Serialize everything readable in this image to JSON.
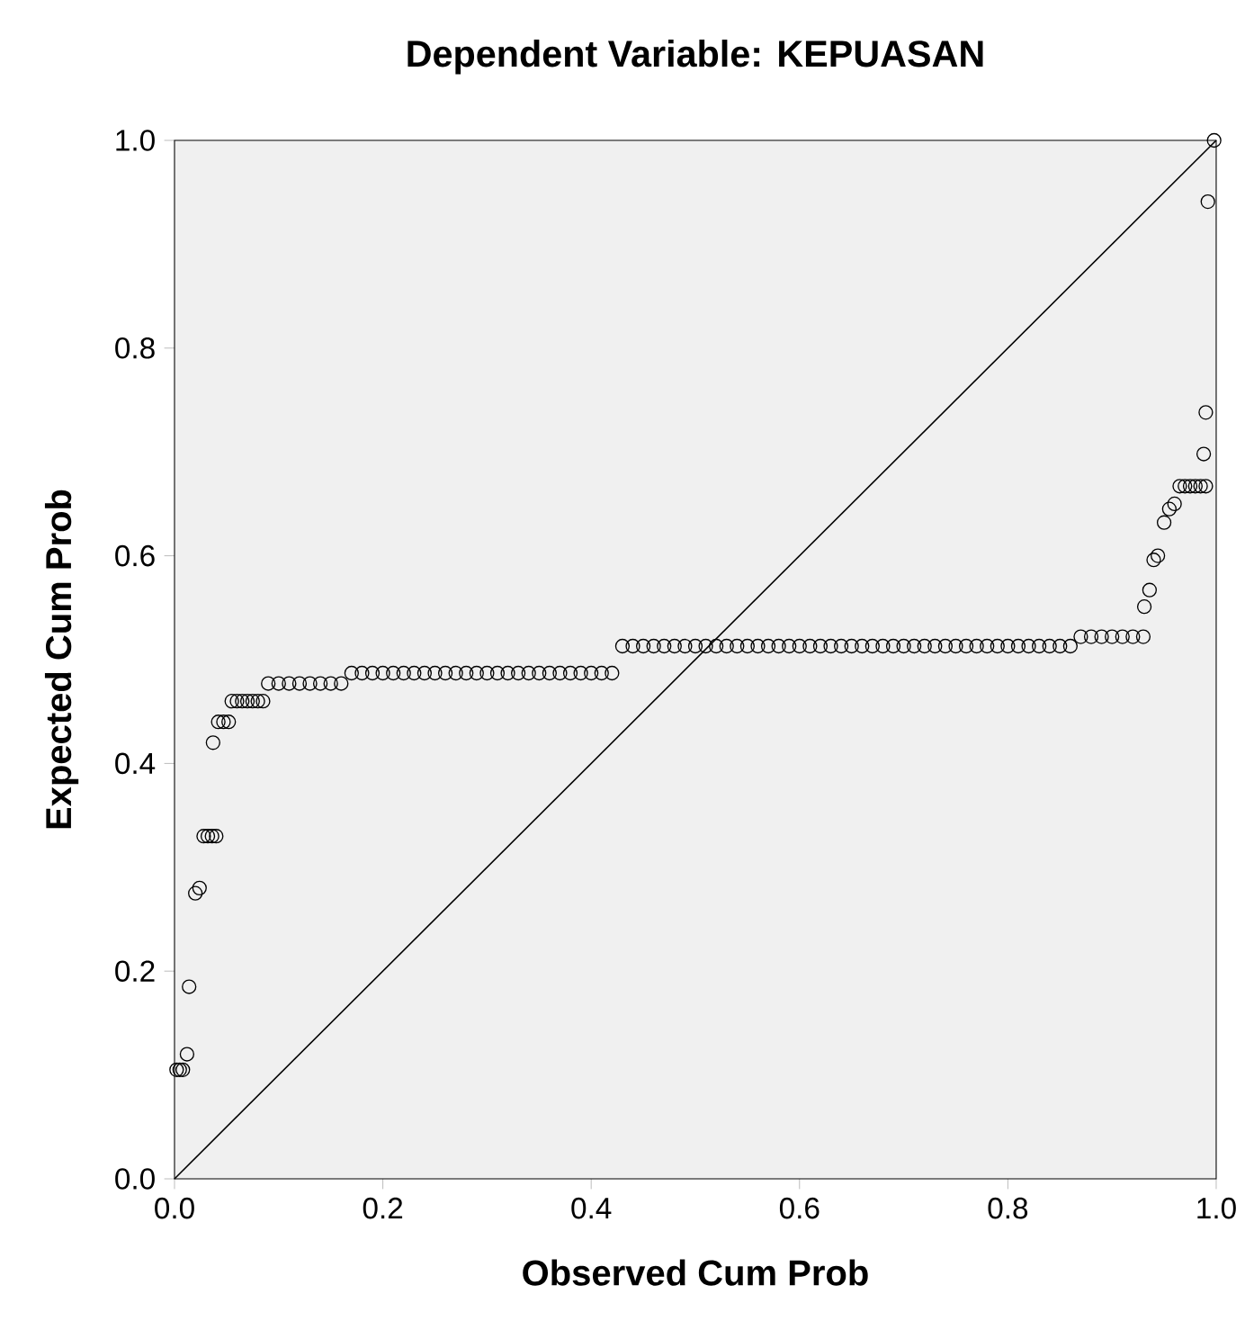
{
  "chart_data": {
    "type": "scatter",
    "title": "Dependent Variable: KEPUASAN",
    "xlabel": "Observed Cum Prob",
    "ylabel": "Expected Cum Prob",
    "xlim": [
      0,
      1
    ],
    "ylim": [
      0,
      1
    ],
    "xticks": [
      {
        "value": 0,
        "label": "0.0"
      },
      {
        "value": 0.2,
        "label": "0.2"
      },
      {
        "value": 0.4,
        "label": "0.4"
      },
      {
        "value": 0.6,
        "label": "0.6"
      },
      {
        "value": 0.8,
        "label": "0.8"
      },
      {
        "value": 1,
        "label": "1.0"
      }
    ],
    "yticks": [
      {
        "value": 0,
        "label": "0.0"
      },
      {
        "value": 0.2,
        "label": "0.2"
      },
      {
        "value": 0.4,
        "label": "0.4"
      },
      {
        "value": 0.6,
        "label": "0.6"
      },
      {
        "value": 0.8,
        "label": "0.8"
      },
      {
        "value": 1,
        "label": "1.0"
      }
    ],
    "grid": false,
    "series": [
      {
        "type": "scatter",
        "color": "#000000",
        "marker": "circle",
        "x": [
          0.002,
          0.005,
          0.008,
          0.012,
          0.014,
          0.02,
          0.024,
          0.028,
          0.032,
          0.036,
          0.04,
          0.037,
          0.042,
          0.047,
          0.052,
          0.055,
          0.06,
          0.065,
          0.07,
          0.075,
          0.08,
          0.085,
          0.09,
          0.1,
          0.11,
          0.12,
          0.13,
          0.14,
          0.15,
          0.16,
          0.17,
          0.18,
          0.19,
          0.2,
          0.21,
          0.22,
          0.23,
          0.24,
          0.25,
          0.26,
          0.27,
          0.28,
          0.29,
          0.3,
          0.31,
          0.32,
          0.33,
          0.34,
          0.35,
          0.36,
          0.37,
          0.38,
          0.39,
          0.4,
          0.41,
          0.42,
          0.43,
          0.44,
          0.45,
          0.46,
          0.47,
          0.48,
          0.49,
          0.5,
          0.51,
          0.52,
          0.53,
          0.54,
          0.55,
          0.56,
          0.57,
          0.58,
          0.59,
          0.6,
          0.61,
          0.62,
          0.63,
          0.64,
          0.65,
          0.66,
          0.67,
          0.68,
          0.69,
          0.7,
          0.71,
          0.72,
          0.73,
          0.74,
          0.75,
          0.76,
          0.77,
          0.78,
          0.79,
          0.8,
          0.81,
          0.82,
          0.83,
          0.84,
          0.85,
          0.86,
          0.87,
          0.88,
          0.89,
          0.9,
          0.91,
          0.92,
          0.93,
          0.931,
          0.936,
          0.94,
          0.944,
          0.95,
          0.955,
          0.96,
          0.965,
          0.97,
          0.975,
          0.98,
          0.985,
          0.99,
          0.988,
          0.99,
          0.992,
          0.998
        ],
        "values": [
          0.105,
          0.105,
          0.105,
          0.12,
          0.185,
          0.275,
          0.28,
          0.33,
          0.33,
          0.33,
          0.33,
          0.42,
          0.44,
          0.44,
          0.44,
          0.46,
          0.46,
          0.46,
          0.46,
          0.46,
          0.46,
          0.46,
          0.477,
          0.477,
          0.477,
          0.477,
          0.477,
          0.477,
          0.477,
          0.477,
          0.487,
          0.487,
          0.487,
          0.487,
          0.487,
          0.487,
          0.487,
          0.487,
          0.487,
          0.487,
          0.487,
          0.487,
          0.487,
          0.487,
          0.487,
          0.487,
          0.487,
          0.487,
          0.487,
          0.487,
          0.487,
          0.487,
          0.487,
          0.487,
          0.487,
          0.487,
          0.513,
          0.513,
          0.513,
          0.513,
          0.513,
          0.513,
          0.513,
          0.513,
          0.513,
          0.513,
          0.513,
          0.513,
          0.513,
          0.513,
          0.513,
          0.513,
          0.513,
          0.513,
          0.513,
          0.513,
          0.513,
          0.513,
          0.513,
          0.513,
          0.513,
          0.513,
          0.513,
          0.513,
          0.513,
          0.513,
          0.513,
          0.513,
          0.513,
          0.513,
          0.513,
          0.513,
          0.513,
          0.513,
          0.513,
          0.513,
          0.513,
          0.513,
          0.513,
          0.513,
          0.522,
          0.522,
          0.522,
          0.522,
          0.522,
          0.522,
          0.522,
          0.551,
          0.567,
          0.596,
          0.6,
          0.632,
          0.645,
          0.65,
          0.667,
          0.667,
          0.667,
          0.667,
          0.667,
          0.667,
          0.698,
          0.738,
          0.941,
          1.0
        ]
      },
      {
        "type": "line",
        "color": "#000000",
        "marker": "none",
        "line_style": "solid",
        "x": [
          0,
          1
        ],
        "values": [
          0,
          1
        ]
      }
    ]
  }
}
